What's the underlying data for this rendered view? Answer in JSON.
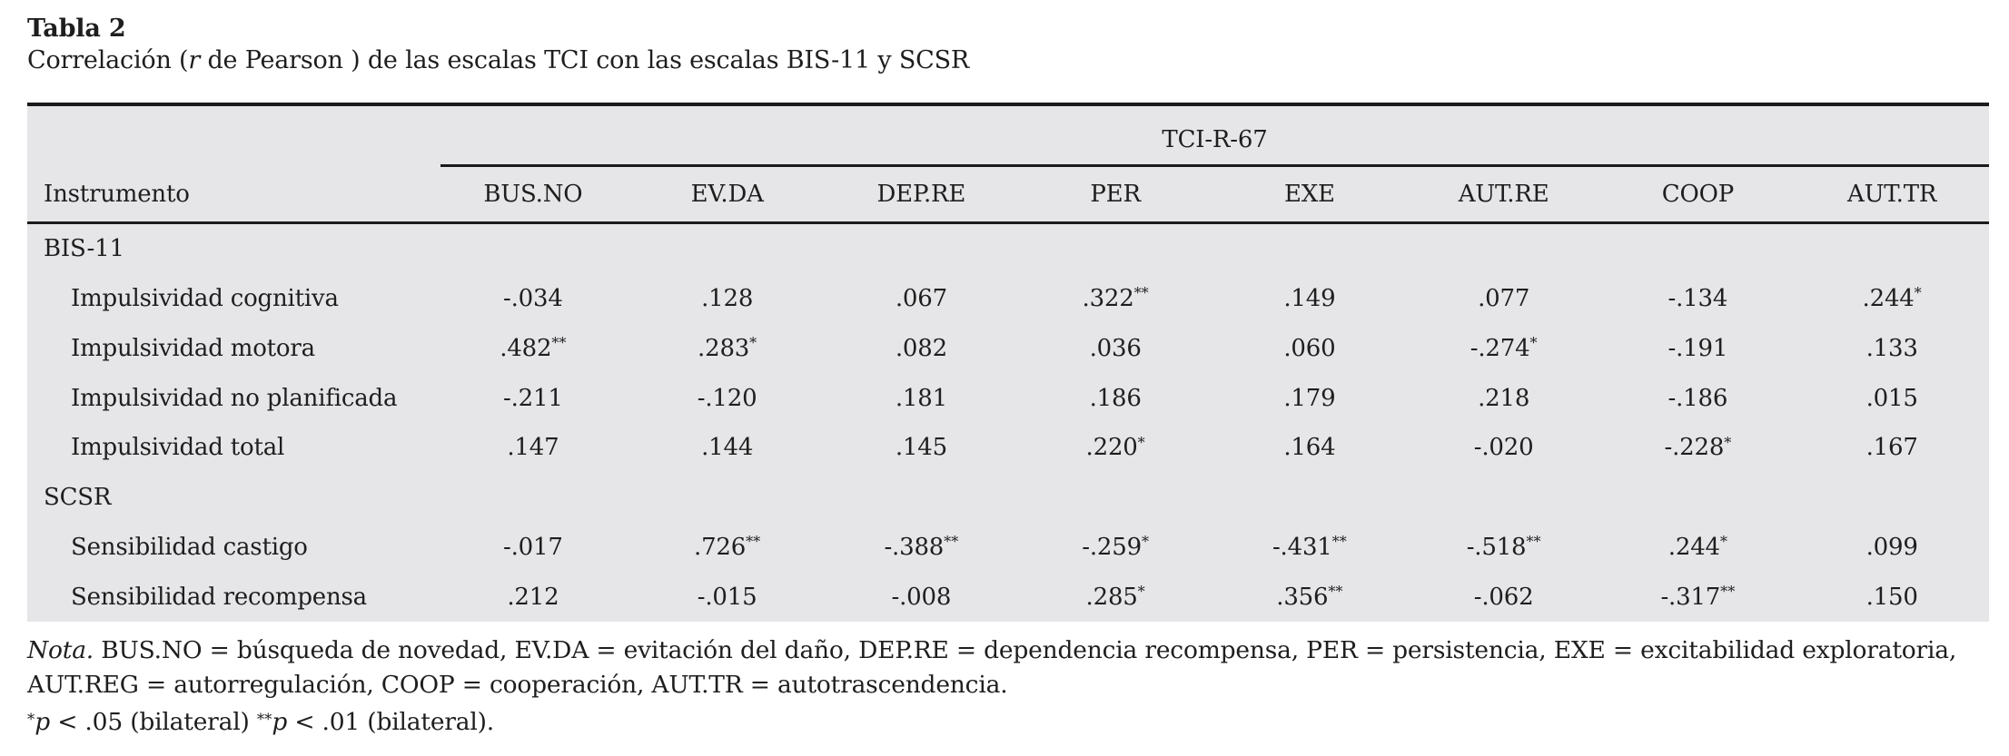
{
  "title": "Tabla 2",
  "subtitle": {
    "pre": "Correlación (",
    "italic": "r",
    "post": " de Pearson ) de las escalas TCI con las escalas BIS-11 y SCSR"
  },
  "table": {
    "spanner": "TCI-R-67",
    "row_header": "Instrumento",
    "columns": [
      "BUS.NO",
      "EV.DA",
      "DEP.RE",
      "PER",
      "EXE",
      "AUT.RE",
      "COOP",
      "AUT.TR"
    ],
    "sections": [
      {
        "label": "BIS-11",
        "rows": [
          {
            "label": "Impulsividad cognitiva",
            "values": [
              "-.034",
              ".128",
              ".067",
              ".322**",
              ".149",
              ".077",
              "-.134",
              ".244*"
            ]
          },
          {
            "label": "Impulsividad motora",
            "values": [
              ".482**",
              ".283*",
              ".082",
              ".036",
              ".060",
              "-.274*",
              "-.191",
              ".133"
            ]
          },
          {
            "label": "Impulsividad no planificada",
            "values": [
              "-.211",
              "-.120",
              ".181",
              ".186",
              ".179",
              ".218",
              "-.186",
              ".015"
            ]
          },
          {
            "label": "Impulsividad total",
            "values": [
              ".147",
              ".144",
              ".145",
              ".220*",
              ".164",
              "-.020",
              "-.228*",
              ".167"
            ]
          }
        ]
      },
      {
        "label": "SCSR",
        "rows": [
          {
            "label": "Sensibilidad castigo",
            "values": [
              "-.017",
              ".726**",
              "-.388**",
              "-.259*",
              "-.431**",
              "-.518**",
              ".244*",
              ".099"
            ]
          },
          {
            "label": "Sensibilidad recompensa",
            "values": [
              ".212",
              "-.015",
              "-.008",
              ".285*",
              ".356**",
              "-.062",
              "-.317**",
              ".150"
            ]
          }
        ]
      }
    ]
  },
  "footnotes": {
    "nota_label": "Nota.",
    "abbreviations": " BUS.NO = búsqueda de novedad, EV.DA = evitación del daño, DEP.RE = dependencia recompensa, PER = persistencia, EXE = excitabilidad exploratoria, AUT.REG = autorregulación,  COOP = cooperación, AUT.TR = autotrascendencia.",
    "significance_parts": [
      {
        "sup": "*"
      },
      {
        "i": "p"
      },
      {
        "t": " < .05 (bilateral) "
      },
      {
        "sup": "**"
      },
      {
        "i": "p"
      },
      {
        "t": " < .01 (bilateral)."
      }
    ]
  },
  "colors": {
    "table_background": "#e6e6e8",
    "rule": "#1b1b1b",
    "text": "#1e1e1e"
  }
}
